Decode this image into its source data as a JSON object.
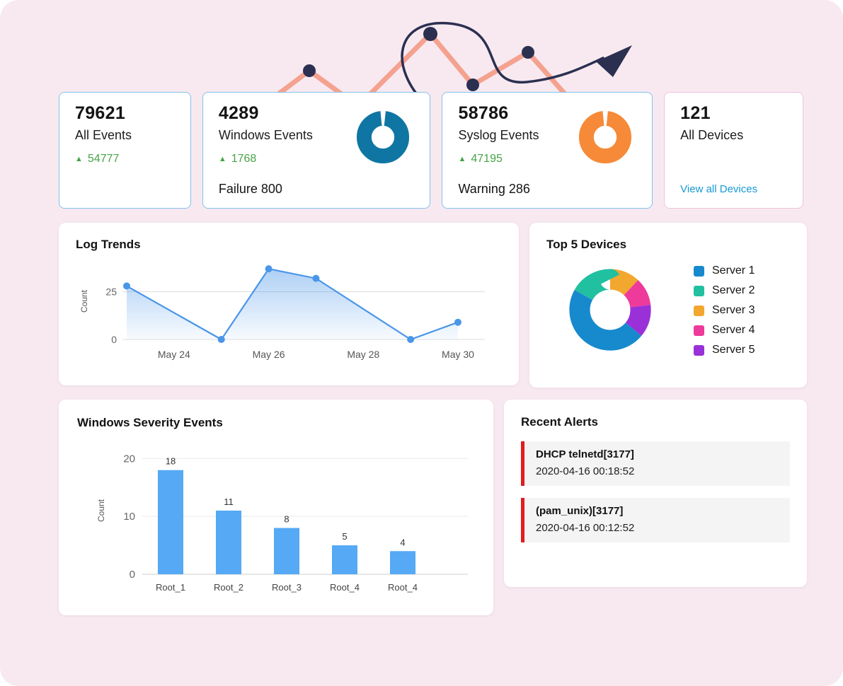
{
  "icons": {
    "up_arrow": "▲"
  },
  "colors": {
    "delta_green": "#47a447",
    "link_blue": "#189ad6",
    "alert_red": "#e11d1d"
  },
  "stats": [
    {
      "value": "79621",
      "label": "All Events",
      "delta": "54777"
    },
    {
      "value": "4289",
      "label": "Windows Events",
      "delta": "1768",
      "footer": "Failure 800",
      "donut_color": "#0f76a3"
    },
    {
      "value": "58786",
      "label": "Syslog Events",
      "delta": "47195",
      "footer": "Warning 286",
      "donut_color": "#f68a38"
    },
    {
      "value": "121",
      "label": "All Devices",
      "link": "View all Devices"
    }
  ],
  "chart_data": [
    {
      "type": "line",
      "title": "Log Trends",
      "ylabel": "Count",
      "x": [
        23,
        25,
        26,
        27,
        29,
        30
      ],
      "values": [
        28,
        0,
        37,
        32,
        0,
        9
      ],
      "x_tick_days": [
        24,
        26,
        28,
        30
      ],
      "x_tick_labels": [
        "May 24",
        "May 26",
        "May 28",
        "May 30"
      ],
      "y_ticks": [
        0,
        25
      ],
      "ylim": [
        0,
        40
      ],
      "line_color": "#4a96e8",
      "area_fill": "blue-gradient",
      "grid": true
    },
    {
      "type": "pie",
      "title": "Top 5 Devices",
      "donut": true,
      "legend_position": "right",
      "slices": [
        {
          "label": "Server 1",
          "value": 47,
          "color": "#1789cd"
        },
        {
          "label": "Server 2",
          "value": 17,
          "color": "#21c0a0"
        },
        {
          "label": "Server 3",
          "value": 12,
          "color": "#f2a72e"
        },
        {
          "label": "Server 4",
          "value": 11,
          "color": "#ee3a9a"
        },
        {
          "label": "Server 5",
          "value": 13,
          "color": "#9a30d8"
        }
      ],
      "draw_order": [
        2,
        3,
        4,
        0,
        1
      ]
    },
    {
      "type": "bar",
      "title": "Windows Severity Events",
      "ylabel": "Count",
      "categories": [
        "Root_1",
        "Root_2",
        "Root_3",
        "Root_4",
        "Root_4"
      ],
      "values": [
        18,
        11,
        8,
        5,
        4
      ],
      "y_ticks": [
        0,
        10,
        20
      ],
      "ylim": [
        0,
        22
      ],
      "bar_color": "#55a9f5",
      "grid": true
    }
  ],
  "alerts": {
    "title": "Recent Alerts",
    "items": [
      {
        "title": "DHCP telnetd[3177]",
        "time": "2020-04-16 00:18:52"
      },
      {
        "title": "(pam_unix)[3177]",
        "time": "2020-04-16 00:12:52"
      }
    ]
  }
}
